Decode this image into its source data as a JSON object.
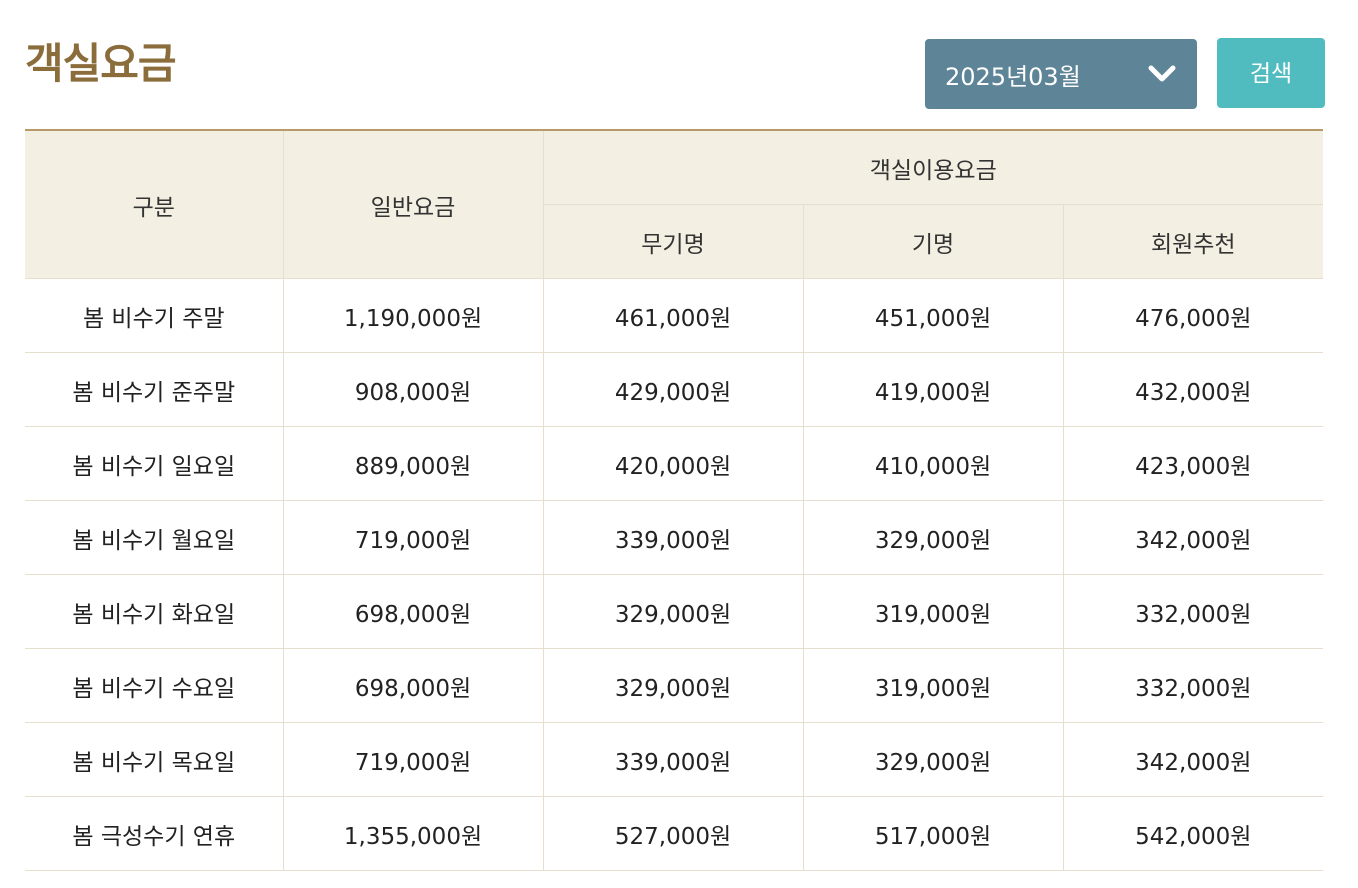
{
  "page": {
    "title": "객실요금"
  },
  "filter": {
    "selected_month": "2025년03월",
    "search_label": "검색",
    "select_color": "#5e8497",
    "button_color": "#51bcc0"
  },
  "table": {
    "headers": {
      "category": "구분",
      "regular": "일반요금",
      "group": "객실이용요금",
      "sub": [
        "무기명",
        "기명",
        "회원추천"
      ]
    },
    "rows": [
      [
        "봄 비수기 주말",
        "1,190,000원",
        "461,000원",
        "451,000원",
        "476,000원"
      ],
      [
        "봄 비수기 준주말",
        "908,000원",
        "429,000원",
        "419,000원",
        "432,000원"
      ],
      [
        "봄 비수기 일요일",
        "889,000원",
        "420,000원",
        "410,000원",
        "423,000원"
      ],
      [
        "봄 비수기 월요일",
        "719,000원",
        "339,000원",
        "329,000원",
        "342,000원"
      ],
      [
        "봄 비수기 화요일",
        "698,000원",
        "329,000원",
        "319,000원",
        "332,000원"
      ],
      [
        "봄 비수기 수요일",
        "698,000원",
        "329,000원",
        "319,000원",
        "332,000원"
      ],
      [
        "봄 비수기 목요일",
        "719,000원",
        "339,000원",
        "329,000원",
        "342,000원"
      ],
      [
        "봄 극성수기 연휴",
        "1,355,000원",
        "527,000원",
        "517,000원",
        "542,000원"
      ]
    ]
  }
}
